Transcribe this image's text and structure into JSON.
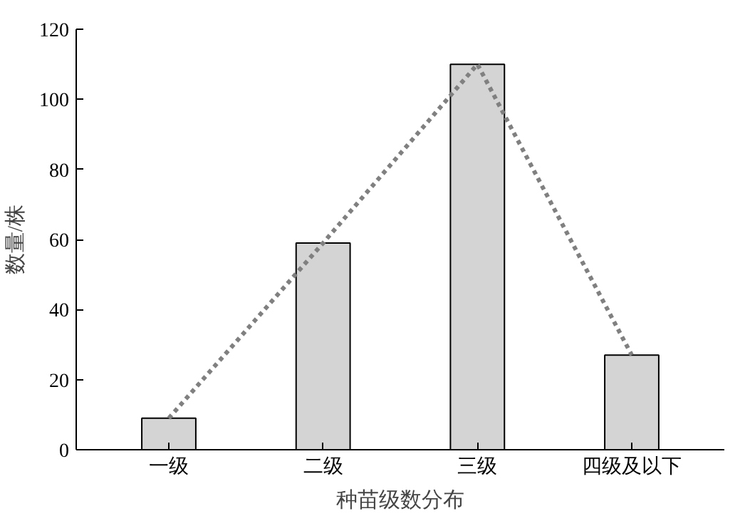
{
  "chart_data": {
    "type": "bar",
    "categories": [
      "一级",
      "二级",
      "三级",
      "四级及以下"
    ],
    "xlabel": "种苗级数分布",
    "ylabel": "数量/株",
    "ylim": [
      0,
      120
    ],
    "yticks": [
      0,
      20,
      40,
      60,
      80,
      100,
      120
    ],
    "grid": false,
    "series": [
      {
        "color": "#d4d4d4",
        "values": [
          9,
          59,
          110,
          27
        ]
      },
      {
        "type": "line",
        "color": "#808080",
        "line_style": "dotted",
        "marker": "none",
        "values": [
          9,
          59,
          110,
          27
        ]
      }
    ]
  }
}
